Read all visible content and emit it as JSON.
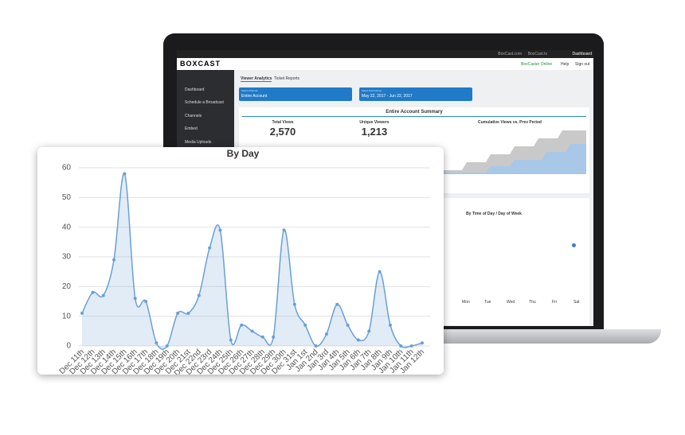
{
  "screen": {
    "top_links": [
      "BoxCast.com",
      "BoxCast.tv",
      "Dashboard"
    ],
    "logo": "BOXCAST",
    "status": "BoxCaster Online",
    "header_links": [
      "Help",
      "Sign out"
    ],
    "sidebar": [
      "Dashboard",
      "Schedule a Broadcast",
      "Channels",
      "Embed",
      "Media Uploads"
    ],
    "tabs": [
      "Viewer Analytics",
      "Ticket Reports"
    ],
    "filters": [
      {
        "label": "Select Channel",
        "value": "Entire Account"
      },
      {
        "label": "Select Date Range",
        "value": "May 22, 2017 - Jun 22, 2017"
      }
    ],
    "summary_title": "Entire Account Summary",
    "stats": [
      {
        "label": "Total Views",
        "value": "2,570"
      },
      {
        "label": "Unique Viewers",
        "value": "1,213"
      }
    ],
    "cumulative_title": "Cumulative Views vs. Prev Period",
    "time_title": "By Time of Day / Day of Week",
    "weekdays": [
      "Mon",
      "Tue",
      "Wed",
      "Thu",
      "Fri",
      "Sat"
    ]
  },
  "chart_data": {
    "type": "line",
    "title": "By Day",
    "categories": [
      "Dec 11th",
      "Dec 12th",
      "Dec 13th",
      "Dec 14th",
      "Dec 15th",
      "Dec 16th",
      "Dec 17th",
      "Dec 18th",
      "Dec 19th",
      "Dec 20th",
      "Dec 21st",
      "Dec 22nd",
      "Dec 23rd",
      "Dec 24th",
      "Dec 25th",
      "Dec 26th",
      "Dec 27th",
      "Dec 28th",
      "Dec 29th",
      "Dec 30th",
      "Dec 31st",
      "Jan 1st",
      "Jan 2nd",
      "Jan 3rd",
      "Jan 4th",
      "Jan 5th",
      "Jan 6th",
      "Jan 7th",
      "Jan 8th",
      "Jan 9th",
      "Jan 10th",
      "Jan 11th",
      "Jan 12th"
    ],
    "values": [
      11,
      18,
      17,
      29,
      58,
      16,
      15,
      1,
      0,
      11,
      11,
      17,
      33,
      39,
      2,
      7,
      5,
      3,
      3,
      39,
      14,
      7,
      0,
      4,
      14,
      7,
      2,
      5,
      25,
      7,
      0,
      0,
      1
    ],
    "color": "#6a9fd6",
    "ylim": [
      0,
      60
    ],
    "yticks": [
      0,
      10,
      20,
      30,
      40,
      50,
      60
    ],
    "grid": true
  }
}
